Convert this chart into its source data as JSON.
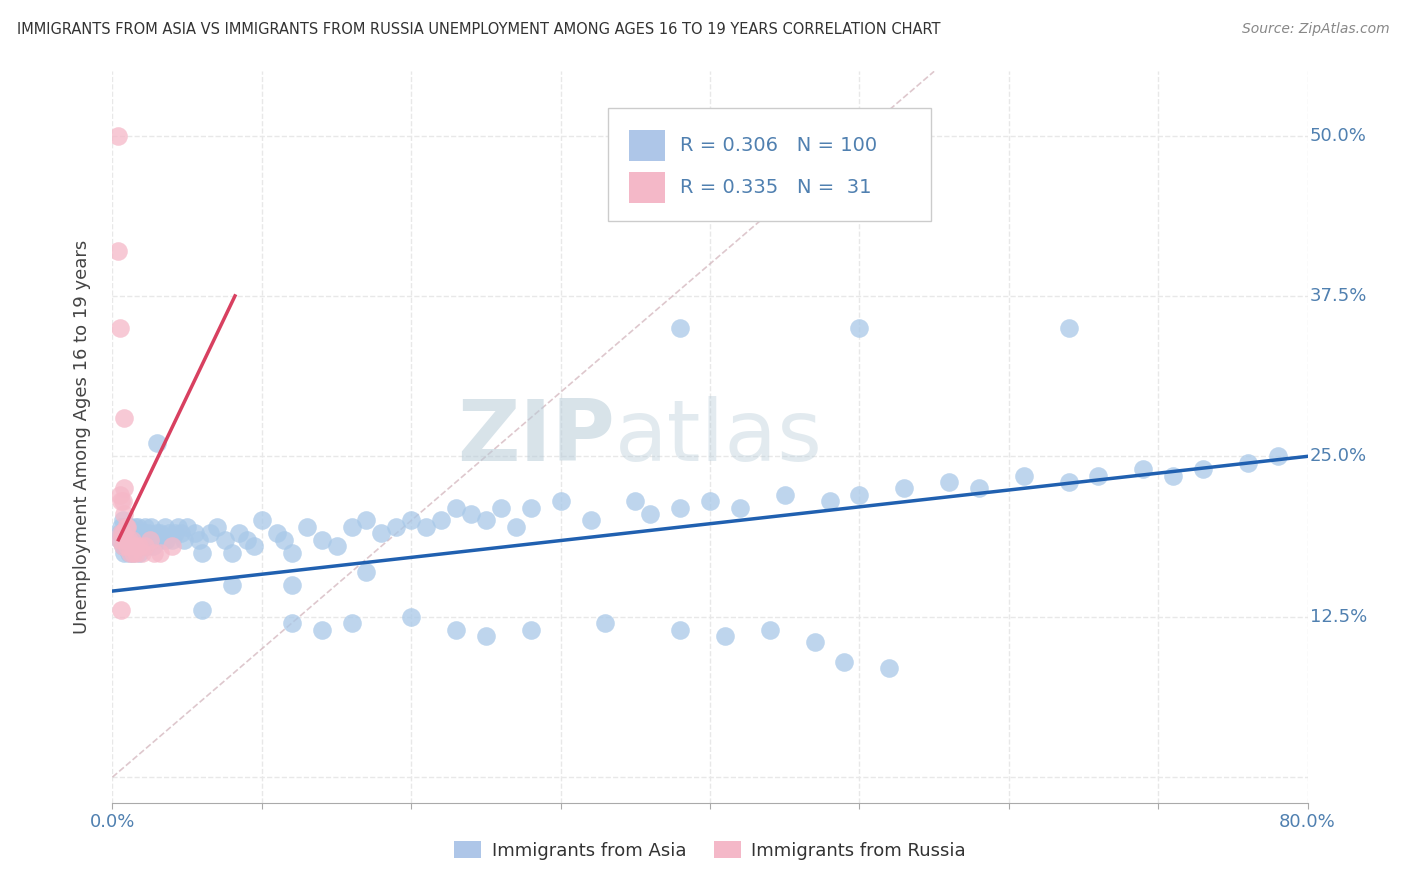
{
  "title": "IMMIGRANTS FROM ASIA VS IMMIGRANTS FROM RUSSIA UNEMPLOYMENT AMONG AGES 16 TO 19 YEARS CORRELATION CHART",
  "source": "Source: ZipAtlas.com",
  "ylabel": "Unemployment Among Ages 16 to 19 years",
  "xlim": [
    0.0,
    0.8
  ],
  "ylim": [
    -0.02,
    0.55
  ],
  "yticks": [
    0.0,
    0.125,
    0.25,
    0.375,
    0.5
  ],
  "ytick_labels": [
    "",
    "12.5%",
    "25.0%",
    "37.5%",
    "50.0%"
  ],
  "legend_asia": {
    "R": "0.306",
    "N": "100"
  },
  "legend_russia": {
    "R": "0.335",
    "N": "31"
  },
  "watermark_zip": "ZIP",
  "watermark_atlas": "atlas",
  "watermark_color": "#c5d5e5",
  "asia_scatter_color": "#a8c8e8",
  "russia_scatter_color": "#f5b8c8",
  "asia_scatter_edge": "#a8c8e8",
  "russia_scatter_edge": "#f5b8c8",
  "asia_line_color": "#2060b0",
  "russia_line_color": "#d84060",
  "ref_line_color": "#d0b0b8",
  "background_color": "#ffffff",
  "grid_color": "#e8e8e8",
  "grid_style": "--",
  "legend_box_color": "#aec6e8",
  "legend_box_color2": "#f4b8c8",
  "tick_label_color": "#5080b0",
  "asia_x": [
    0.005,
    0.005,
    0.006,
    0.007,
    0.007,
    0.008,
    0.009,
    0.009,
    0.01,
    0.01,
    0.011,
    0.011,
    0.012,
    0.012,
    0.013,
    0.014,
    0.014,
    0.015,
    0.015,
    0.016,
    0.016,
    0.017,
    0.018,
    0.018,
    0.019,
    0.02,
    0.02,
    0.021,
    0.022,
    0.022,
    0.023,
    0.024,
    0.025,
    0.026,
    0.027,
    0.028,
    0.03,
    0.031,
    0.032,
    0.034,
    0.035,
    0.036,
    0.038,
    0.04,
    0.042,
    0.044,
    0.046,
    0.048,
    0.05,
    0.055,
    0.058,
    0.06,
    0.065,
    0.07,
    0.075,
    0.08,
    0.085,
    0.09,
    0.095,
    0.1,
    0.11,
    0.115,
    0.12,
    0.13,
    0.14,
    0.15,
    0.16,
    0.17,
    0.18,
    0.19,
    0.2,
    0.21,
    0.22,
    0.23,
    0.24,
    0.25,
    0.26,
    0.27,
    0.28,
    0.3,
    0.32,
    0.35,
    0.36,
    0.38,
    0.4,
    0.42,
    0.45,
    0.48,
    0.5,
    0.53,
    0.56,
    0.58,
    0.61,
    0.64,
    0.66,
    0.69,
    0.71,
    0.73,
    0.76,
    0.78
  ],
  "asia_y": [
    0.19,
    0.185,
    0.195,
    0.18,
    0.2,
    0.175,
    0.185,
    0.195,
    0.19,
    0.18,
    0.185,
    0.175,
    0.195,
    0.185,
    0.18,
    0.19,
    0.175,
    0.185,
    0.195,
    0.18,
    0.185,
    0.195,
    0.175,
    0.185,
    0.19,
    0.185,
    0.18,
    0.19,
    0.185,
    0.195,
    0.18,
    0.19,
    0.185,
    0.195,
    0.18,
    0.185,
    0.19,
    0.185,
    0.19,
    0.185,
    0.195,
    0.185,
    0.19,
    0.185,
    0.19,
    0.195,
    0.19,
    0.185,
    0.195,
    0.19,
    0.185,
    0.175,
    0.19,
    0.195,
    0.185,
    0.175,
    0.19,
    0.185,
    0.18,
    0.2,
    0.19,
    0.185,
    0.175,
    0.195,
    0.185,
    0.18,
    0.195,
    0.2,
    0.19,
    0.195,
    0.2,
    0.195,
    0.2,
    0.21,
    0.205,
    0.2,
    0.21,
    0.195,
    0.21,
    0.215,
    0.2,
    0.215,
    0.205,
    0.21,
    0.215,
    0.21,
    0.22,
    0.215,
    0.22,
    0.225,
    0.23,
    0.225,
    0.235,
    0.23,
    0.235,
    0.24,
    0.235,
    0.24,
    0.245,
    0.25
  ],
  "asia_y_outliers_x": [
    0.03,
    0.38,
    0.5,
    0.64,
    0.08,
    0.12,
    0.17
  ],
  "asia_y_outliers_y": [
    0.26,
    0.35,
    0.35,
    0.35,
    0.15,
    0.15,
    0.16
  ],
  "asia_low_x": [
    0.06,
    0.12,
    0.14,
    0.16,
    0.2,
    0.23,
    0.25,
    0.28,
    0.33,
    0.38,
    0.41,
    0.44,
    0.47,
    0.49,
    0.52
  ],
  "asia_low_y": [
    0.13,
    0.12,
    0.115,
    0.12,
    0.125,
    0.115,
    0.11,
    0.115,
    0.12,
    0.115,
    0.11,
    0.115,
    0.105,
    0.09,
    0.085
  ],
  "russia_x": [
    0.004,
    0.004,
    0.005,
    0.005,
    0.005,
    0.006,
    0.006,
    0.007,
    0.007,
    0.007,
    0.008,
    0.008,
    0.009,
    0.009,
    0.01,
    0.01,
    0.011,
    0.012,
    0.013,
    0.014,
    0.015,
    0.016,
    0.018,
    0.02,
    0.022,
    0.025,
    0.028,
    0.032,
    0.04,
    0.008,
    0.006
  ],
  "russia_y": [
    0.5,
    0.41,
    0.35,
    0.22,
    0.185,
    0.215,
    0.19,
    0.215,
    0.19,
    0.18,
    0.225,
    0.205,
    0.195,
    0.185,
    0.195,
    0.18,
    0.185,
    0.175,
    0.185,
    0.175,
    0.18,
    0.175,
    0.18,
    0.175,
    0.18,
    0.185,
    0.175,
    0.175,
    0.18,
    0.28,
    0.13
  ],
  "asia_line_x": [
    0.0,
    0.8
  ],
  "asia_line_y": [
    0.145,
    0.25
  ],
  "russia_line_x": [
    0.004,
    0.082
  ],
  "russia_line_y": [
    0.185,
    0.375
  ]
}
